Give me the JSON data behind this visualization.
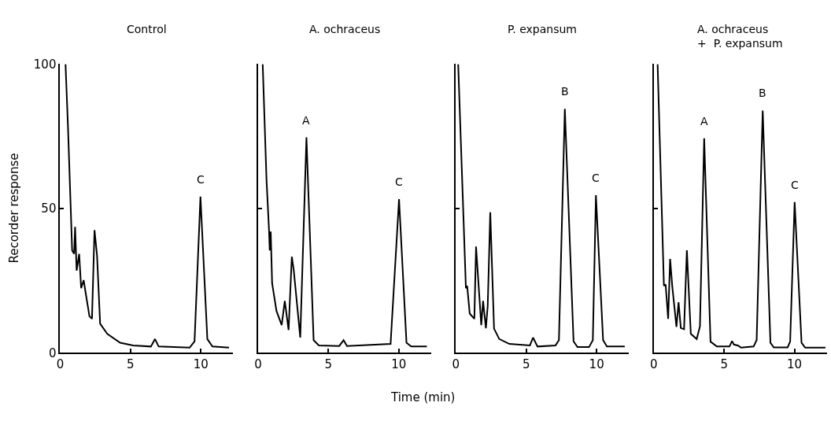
{
  "chart_data": [
    {
      "type": "line",
      "title": "Control",
      "ylabel": "Recorder response",
      "xlim": [
        0,
        12.3
      ],
      "ylim": [
        0,
        100
      ],
      "xticks": [
        0,
        5,
        10
      ],
      "yticks": [
        0,
        50,
        100
      ],
      "x": [
        0.38,
        0.56,
        0.85,
        0.99,
        1.06,
        1.17,
        1.35,
        1.49,
        1.67,
        1.8,
        2.08,
        2.26,
        2.44,
        2.62,
        2.84,
        3.35,
        4.26,
        5.18,
        6.45,
        6.74,
        7.0,
        9.2,
        9.55,
        9.97,
        10.46,
        10.82,
        12.0
      ],
      "series": [
        {
          "color": "#000000",
          "values": [
            100,
            77.6,
            35.5,
            34.3,
            43.6,
            28.5,
            34.3,
            22.4,
            25.2,
            21.1,
            12.7,
            11.8,
            42.5,
            33.7,
            10.1,
            6.6,
            3.5,
            2.6,
            2.2,
            4.8,
            2.2,
            1.8,
            4.0,
            54.1,
            4.8,
            2.2,
            1.8
          ]
        }
      ],
      "annotations": [
        {
          "text": "C",
          "x": 9.97,
          "y": 54.1
        }
      ]
    },
    {
      "type": "line",
      "title": "A. ochraceus",
      "xlabel": "Time (min)",
      "xlim": [
        0,
        12.3
      ],
      "ylim": [
        0,
        100
      ],
      "xticks": [
        0,
        5,
        10
      ],
      "yticks": [
        0,
        50,
        100
      ],
      "tick_labels": "x",
      "x": [
        0.33,
        0.6,
        0.78,
        0.83,
        0.9,
        1.0,
        1.31,
        1.68,
        1.9,
        2.17,
        2.4,
        2.54,
        3.0,
        3.44,
        3.95,
        4.32,
        5.77,
        6.08,
        6.32,
        9.42,
        10.02,
        10.55,
        10.88,
        12.0
      ],
      "series": [
        {
          "color": "#000000",
          "values": [
            100,
            60.1,
            42.5,
            35.5,
            42,
            24.1,
            14.5,
            9.6,
            18.0,
            7.9,
            33.3,
            28.5,
            5.3,
            74.6,
            4.4,
            2.6,
            2.4,
            4.4,
            2.4,
            3.1,
            53.2,
            3.5,
            2.2,
            2.2
          ]
        }
      ],
      "annotations": [
        {
          "text": "A",
          "x": 3.44,
          "y": 74.6
        },
        {
          "text": "C",
          "x": 10.02,
          "y": 53.2
        }
      ]
    },
    {
      "type": "line",
      "title": "P. expansum",
      "xlim": [
        0,
        12.3
      ],
      "ylim": [
        0,
        100
      ],
      "xticks": [
        0,
        5,
        10
      ],
      "yticks": [
        0,
        50,
        100
      ],
      "tick_labels": "x",
      "x": [
        0.16,
        0.71,
        0.8,
        0.98,
        1.31,
        1.43,
        1.8,
        1.93,
        2.13,
        2.26,
        2.44,
        2.71,
        3.08,
        3.8,
        5.26,
        5.48,
        5.8,
        7.08,
        7.32,
        7.74,
        8.36,
        8.64,
        9.46,
        9.73,
        9.95,
        10.46,
        10.73,
        12.0
      ],
      "series": [
        {
          "color": "#000000",
          "values": [
            100,
            22.4,
            23.2,
            13.6,
            11.8,
            36.8,
            9.6,
            18.0,
            8.5,
            16.3,
            48.7,
            8.4,
            4.8,
            3.1,
            2.6,
            5.3,
            2.2,
            2.6,
            4.4,
            84.5,
            4,
            2.0,
            2.0,
            4.4,
            54.6,
            4.4,
            2.2,
            2.2
          ]
        }
      ],
      "annotations": [
        {
          "text": "B",
          "x": 7.74,
          "y": 84.5
        },
        {
          "text": "C",
          "x": 9.95,
          "y": 54.6
        }
      ]
    },
    {
      "type": "line",
      "title": "A. ochraceus\n+  P. expansum",
      "xlim": [
        0,
        12.3
      ],
      "ylim": [
        0,
        100
      ],
      "xticks": [
        0,
        5,
        10
      ],
      "yticks": [
        0,
        50,
        100
      ],
      "tick_labels": "x",
      "x": [
        0.27,
        0.72,
        0.84,
        1.02,
        1.16,
        1.31,
        1.61,
        1.76,
        1.92,
        2.15,
        2.35,
        2.63,
        3.05,
        3.28,
        3.58,
        4.03,
        4.48,
        5.38,
        5.56,
        5.69,
        6.0,
        6.2,
        7.09,
        7.31,
        7.74,
        8.29,
        8.53,
        9.51,
        9.69,
        10.01,
        10.5,
        10.76,
        12.2
      ],
      "series": [
        {
          "color": "#000000",
          "values": [
            100,
            23.2,
            23.7,
            11.8,
            32.5,
            23.2,
            9.0,
            17.5,
            8.6,
            8.2,
            35.5,
            6.6,
            4.8,
            9.2,
            74.3,
            3.9,
            2.2,
            2.2,
            4.1,
            2.9,
            2.5,
            1.8,
            2.2,
            4.4,
            83.9,
            3.5,
            1.9,
            1.9,
            3.9,
            52.2,
            3.5,
            1.8,
            1.8
          ]
        }
      ],
      "annotations": [
        {
          "text": "A",
          "x": 3.58,
          "y": 74.3
        },
        {
          "text": "B",
          "x": 7.74,
          "y": 83.9
        },
        {
          "text": "C",
          "x": 10.01,
          "y": 52.2
        }
      ]
    }
  ]
}
